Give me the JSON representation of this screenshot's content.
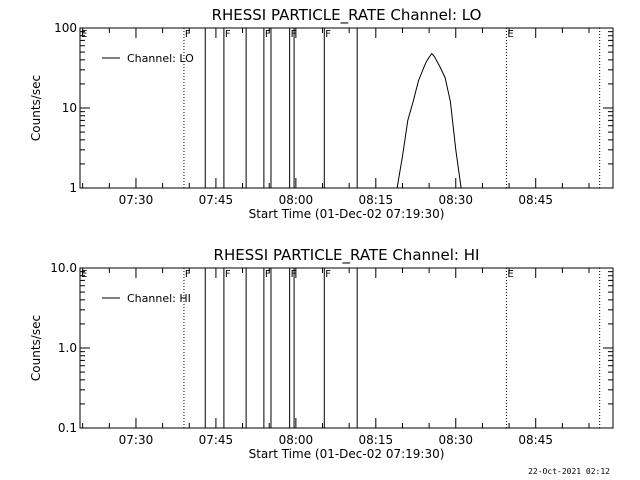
{
  "timestamp": "22-Oct-2021 02:12",
  "chart_data": [
    {
      "type": "line",
      "title": "RHESSI PARTICLE_RATE Channel: LO",
      "xlabel": "Start Time (01-Dec-02 07:19:30)",
      "ylabel": "Counts/sec",
      "yscale": "log",
      "xlim": [
        "07:19:30",
        "08:59:30"
      ],
      "ylim": [
        1,
        100
      ],
      "x_ticks": [
        "07:30",
        "07:45",
        "08:00",
        "08:15",
        "08:30",
        "08:45"
      ],
      "y_ticks": [
        "1",
        "10",
        "100"
      ],
      "legend": {
        "label": "Channel: LO",
        "position": "top-left"
      },
      "flag_lines": [
        {
          "time": "07:19:30",
          "label": "E",
          "style": "dotted"
        },
        {
          "time": "07:39:00",
          "label": "F",
          "style": "dotted"
        },
        {
          "time": "07:43:00",
          "label": "",
          "style": "solid"
        },
        {
          "time": "07:46:30",
          "label": "F",
          "style": "solid"
        },
        {
          "time": "07:50:40",
          "label": "",
          "style": "solid"
        },
        {
          "time": "07:54:00",
          "label": "F",
          "style": "solid"
        },
        {
          "time": "07:55:20",
          "label": "",
          "style": "solid"
        },
        {
          "time": "07:58:50",
          "label": "F",
          "style": "solid"
        },
        {
          "time": "07:59:40",
          "label": "",
          "style": "solid"
        },
        {
          "time": "08:05:20",
          "label": "F",
          "style": "solid"
        },
        {
          "time": "08:11:30",
          "label": "",
          "style": "solid"
        },
        {
          "time": "08:39:30",
          "label": "E",
          "style": "dotted"
        },
        {
          "time": "08:57:00",
          "label": "",
          "style": "dotted"
        }
      ],
      "series": [
        {
          "x": [
            "08:19:00",
            "08:20:00",
            "08:21:00",
            "08:22:00",
            "08:23:00",
            "08:24:00",
            "08:24:30",
            "08:25:00",
            "08:25:30",
            "08:26:00",
            "08:27:00",
            "08:28:00",
            "08:29:00",
            "08:30:00",
            "08:31:00"
          ],
          "values": [
            1,
            2.5,
            7,
            12,
            22,
            32,
            38,
            43,
            48,
            44,
            33,
            24,
            12,
            3,
            1
          ]
        }
      ]
    },
    {
      "type": "line",
      "title": "RHESSI PARTICLE_RATE Channel: HI",
      "xlabel": "Start Time (01-Dec-02 07:19:30)",
      "ylabel": "Counts/sec",
      "yscale": "log",
      "xlim": [
        "07:19:30",
        "08:59:30"
      ],
      "ylim": [
        0.1,
        10
      ],
      "x_ticks": [
        "07:30",
        "07:45",
        "08:00",
        "08:15",
        "08:30",
        "08:45"
      ],
      "y_ticks": [
        "0.1",
        "1.0",
        "10.0"
      ],
      "legend": {
        "label": "Channel: HI",
        "position": "top-left"
      },
      "flag_lines": [
        {
          "time": "07:19:30",
          "label": "E",
          "style": "dotted"
        },
        {
          "time": "07:39:00",
          "label": "F",
          "style": "dotted"
        },
        {
          "time": "07:43:00",
          "label": "",
          "style": "solid"
        },
        {
          "time": "07:46:30",
          "label": "F",
          "style": "solid"
        },
        {
          "time": "07:50:40",
          "label": "",
          "style": "solid"
        },
        {
          "time": "07:54:00",
          "label": "F",
          "style": "solid"
        },
        {
          "time": "07:55:20",
          "label": "",
          "style": "solid"
        },
        {
          "time": "07:58:50",
          "label": "F",
          "style": "solid"
        },
        {
          "time": "07:59:40",
          "label": "",
          "style": "solid"
        },
        {
          "time": "08:05:20",
          "label": "F",
          "style": "solid"
        },
        {
          "time": "08:11:30",
          "label": "",
          "style": "solid"
        },
        {
          "time": "08:39:30",
          "label": "E",
          "style": "dotted"
        },
        {
          "time": "08:57:00",
          "label": "",
          "style": "dotted"
        }
      ],
      "series": [
        {
          "x": [],
          "values": []
        }
      ]
    }
  ]
}
